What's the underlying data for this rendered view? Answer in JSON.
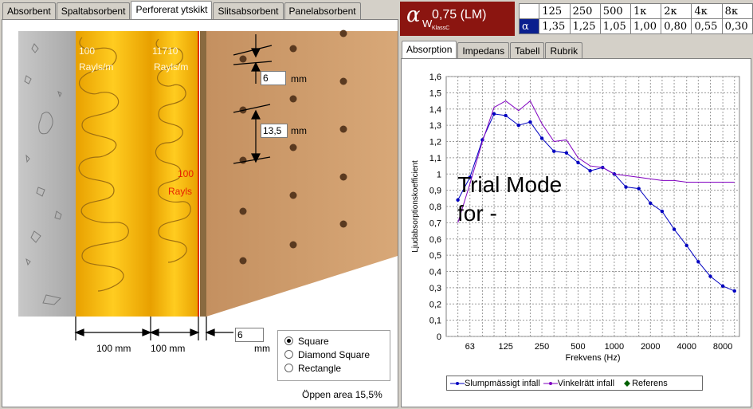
{
  "left_tabs": [
    "Absorbent",
    "Spaltabsorbent",
    "Perforerat ytskikt",
    "Slitsabsorbent",
    "Panelabsorbent"
  ],
  "left_active_tab": 2,
  "layers": {
    "layer1_label_1": "100",
    "layer1_label_2": "Rayls/m",
    "layer2_label_1": "11710",
    "layer2_label_2": "Rayls/m",
    "resistance_label_1": "100",
    "resistance_label_2": "Rayls"
  },
  "dimensions": {
    "hole_diameter": "6",
    "hole_spacing": "13,5",
    "unit": "mm",
    "layer1_thickness": "100 mm",
    "layer2_thickness": "100 mm",
    "plate_thickness": "6",
    "plate_unit": "mm"
  },
  "pattern_options": [
    {
      "label": "Square",
      "selected": true
    },
    {
      "label": "Diamond Square",
      "selected": false
    },
    {
      "label": "Rectangle",
      "selected": false
    }
  ],
  "open_area": "Öppen area 15,5%",
  "rating": {
    "symbol": "α",
    "sub": "W",
    "value": "0,75 (LM)",
    "klass": "KlassC"
  },
  "alpha_table": {
    "corner_top": "",
    "corner_bottom": "α",
    "freqs": [
      "125",
      "250",
      "500",
      "1κ",
      "2κ",
      "4κ",
      "8κ"
    ],
    "values": [
      "1,35",
      "1,25",
      "1,05",
      "1,00",
      "0,80",
      "0,55",
      "0,30"
    ]
  },
  "right_tabs": [
    "Absorption",
    "Impedans",
    "Tabell",
    "Rubrik"
  ],
  "right_active_tab": 0,
  "watermark_line1": "Trial Mode",
  "watermark_line2": "for -",
  "colors": {
    "series1": "#0000c0",
    "series2": "#8000c0",
    "reference": "#006000",
    "rating_bg": "#8b1510"
  },
  "chart_data": {
    "type": "line",
    "xlabel": "Frekvens (Hz)",
    "ylabel": "Ljudabsorptionskoefficient",
    "x_scale": "log",
    "xlim": [
      40,
      11000
    ],
    "ylim": [
      0,
      1.6
    ],
    "x_ticks": [
      "63",
      "125",
      "250",
      "500",
      "1000",
      "2000",
      "4000",
      "8000"
    ],
    "x_tick_values": [
      63,
      125,
      250,
      500,
      1000,
      2000,
      4000,
      8000
    ],
    "y_ticks": [
      "0",
      "0,1",
      "0,2",
      "0,3",
      "0,4",
      "0,5",
      "0,6",
      "0,7",
      "0,8",
      "0,9",
      "1",
      "1,1",
      "1,2",
      "1,3",
      "1,4",
      "1,5",
      "1,6"
    ],
    "grid": true,
    "legend_position": "bottom",
    "series": [
      {
        "name": "Slumpmässigt infall",
        "marker": "dot",
        "x": [
          50,
          63,
          80,
          100,
          125,
          160,
          200,
          250,
          315,
          400,
          500,
          630,
          800,
          1000,
          1250,
          1600,
          2000,
          2500,
          3150,
          4000,
          5000,
          6300,
          8000,
          10000
        ],
        "y": [
          0.84,
          0.98,
          1.21,
          1.37,
          1.36,
          1.3,
          1.32,
          1.22,
          1.14,
          1.13,
          1.07,
          1.02,
          1.04,
          1.0,
          0.92,
          0.91,
          0.82,
          0.77,
          0.66,
          0.56,
          0.46,
          0.37,
          0.31,
          0.28
        ]
      },
      {
        "name": "Vinkelrätt infall",
        "marker": "none",
        "x": [
          50,
          63,
          80,
          100,
          125,
          160,
          200,
          250,
          315,
          400,
          500,
          630,
          800,
          1000,
          1250,
          1600,
          2000,
          2500,
          3150,
          4000,
          5000,
          6300,
          8000,
          10000
        ],
        "y": [
          0.7,
          0.94,
          1.2,
          1.41,
          1.45,
          1.39,
          1.45,
          1.31,
          1.2,
          1.21,
          1.1,
          1.05,
          1.04,
          1.0,
          0.99,
          0.98,
          0.97,
          0.96,
          0.96,
          0.95,
          0.95,
          0.95,
          0.95,
          0.95
        ]
      },
      {
        "name": "Referens",
        "marker": "diamond",
        "x": [],
        "y": []
      }
    ]
  }
}
